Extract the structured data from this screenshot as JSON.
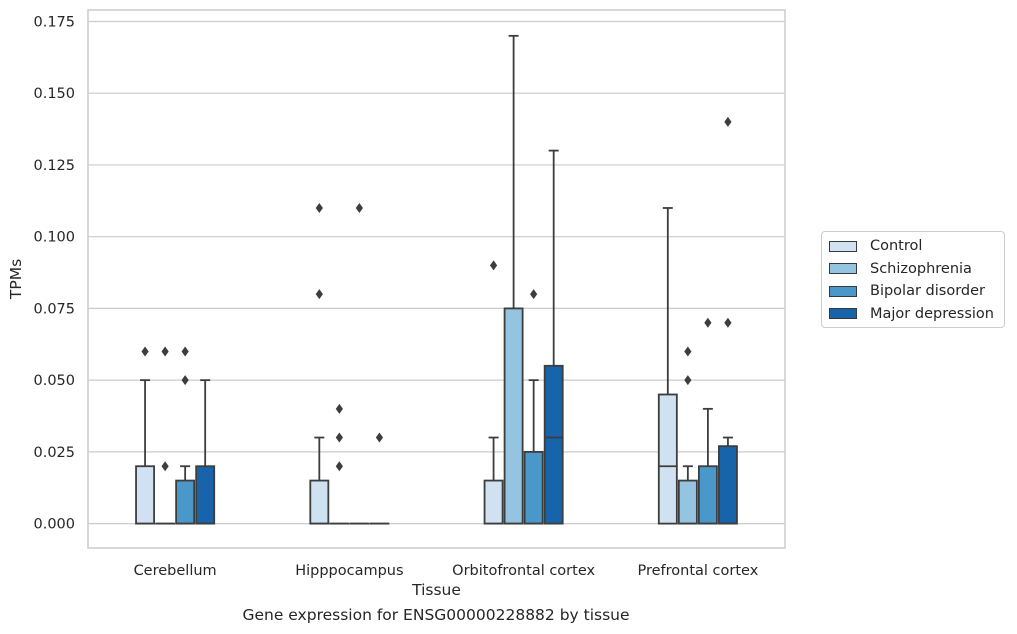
{
  "chart_data": {
    "type": "box",
    "title": "Gene expression for ENSG00000228882 by tissue",
    "xlabel": "Tissue",
    "ylabel": "TPMs",
    "ylim": [
      -0.0085,
      0.179
    ],
    "yticks": [
      "0.000",
      "0.025",
      "0.050",
      "0.075",
      "0.100",
      "0.125",
      "0.150",
      "0.175"
    ],
    "ytick_values": [
      0,
      0.025,
      0.05,
      0.075,
      0.1,
      0.125,
      0.15,
      0.175
    ],
    "grid": true,
    "legend_position": "right",
    "categories": [
      "Cerebellum",
      "Hipppocampus",
      "Orbitofrontal cortex",
      "Prefrontal cortex"
    ],
    "series": [
      {
        "name": "Control",
        "color": "#d0e1f2",
        "boxes": [
          {
            "min": 0,
            "q1": 0,
            "median": 0,
            "q3": 0.02,
            "max": 0.05,
            "outliers": [
              0.06
            ]
          },
          {
            "min": 0,
            "q1": 0,
            "median": 0,
            "q3": 0.015,
            "max": 0.03,
            "outliers": [
              0.08,
              0.11
            ]
          },
          {
            "min": 0,
            "q1": 0,
            "median": 0,
            "q3": 0.015,
            "max": 0.03,
            "outliers": [
              0.09
            ]
          },
          {
            "min": 0,
            "q1": 0,
            "median": 0.02,
            "q3": 0.045,
            "max": 0.11,
            "outliers": []
          }
        ]
      },
      {
        "name": "Schizophrenia",
        "color": "#94c4df",
        "boxes": [
          {
            "min": 0,
            "q1": 0,
            "median": 0,
            "q3": 0,
            "max": 0,
            "outliers": [
              0.02,
              0.06
            ]
          },
          {
            "min": 0,
            "q1": 0,
            "median": 0,
            "q3": 0,
            "max": 0,
            "outliers": [
              0.02,
              0.03,
              0.04
            ]
          },
          {
            "min": 0,
            "q1": 0,
            "median": 0,
            "q3": 0.075,
            "max": 0.17,
            "outliers": []
          },
          {
            "min": 0,
            "q1": 0,
            "median": 0,
            "q3": 0.015,
            "max": 0.02,
            "outliers": [
              0.05,
              0.06
            ]
          }
        ]
      },
      {
        "name": "Bipolar disorder",
        "color": "#4a98c9",
        "boxes": [
          {
            "min": 0,
            "q1": 0,
            "median": 0,
            "q3": 0.015,
            "max": 0.02,
            "outliers": [
              0.05,
              0.06
            ]
          },
          {
            "min": 0,
            "q1": 0,
            "median": 0,
            "q3": 0,
            "max": 0,
            "outliers": [
              0.11
            ]
          },
          {
            "min": 0,
            "q1": 0,
            "median": 0,
            "q3": 0.025,
            "max": 0.05,
            "outliers": [
              0.08
            ]
          },
          {
            "min": 0,
            "q1": 0,
            "median": 0,
            "q3": 0.02,
            "max": 0.04,
            "outliers": [
              0.07
            ]
          }
        ]
      },
      {
        "name": "Major depression",
        "color": "#1764ab",
        "boxes": [
          {
            "min": 0,
            "q1": 0,
            "median": 0,
            "q3": 0.02,
            "max": 0.05,
            "outliers": []
          },
          {
            "min": 0,
            "q1": 0,
            "median": 0,
            "q3": 0,
            "max": 0,
            "outliers": [
              0.03
            ]
          },
          {
            "min": 0,
            "q1": 0,
            "median": 0.03,
            "q3": 0.055,
            "max": 0.13,
            "outliers": []
          },
          {
            "min": 0,
            "q1": 0,
            "median": 0,
            "q3": 0.027,
            "max": 0.03,
            "outliers": [
              0.07,
              0.14
            ]
          }
        ]
      }
    ]
  }
}
